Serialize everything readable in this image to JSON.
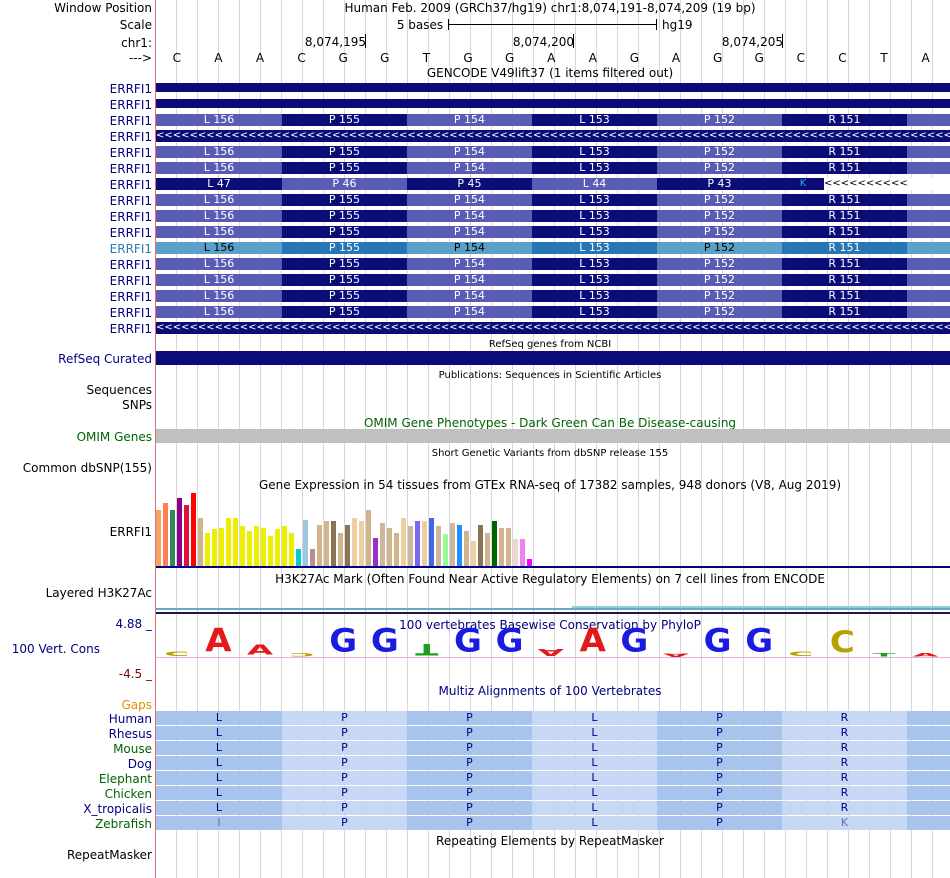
{
  "header": {
    "window_position_label": "Window Position",
    "window_position_value": "Human Feb. 2009 (GRCh37/hg19)   chr1:8,074,191-8,074,209 (19 bp)",
    "scale_label": "Scale",
    "scale_value": "5 bases",
    "scale_assembly": "hg19",
    "chrom_label": "chr1:",
    "strand_label": "--->",
    "positions": [
      "8,074,195",
      "8,074,200",
      "8,074,205"
    ],
    "bases": [
      "C",
      "A",
      "A",
      "C",
      "G",
      "G",
      "T",
      "G",
      "G",
      "A",
      "A",
      "G",
      "A",
      "G",
      "G",
      "C",
      "C",
      "T",
      "A"
    ]
  },
  "gencode": {
    "title": "GENCODE V49lift37 (1 items filtered out)",
    "track_names": [
      "ERRFI1",
      "ERRFI1",
      "ERRFI1",
      "ERRFI1",
      "ERRFI1",
      "ERRFI1",
      "ERRFI1",
      "ERRFI1",
      "ERRFI1",
      "ERRFI1",
      "ERRFI1",
      "ERRFI1",
      "ERRFI1",
      "ERRFI1",
      "ERRFI1"
    ],
    "codons": [
      "L 156",
      "P 155",
      "P 154",
      "L 153",
      "P 152",
      "R 151"
    ],
    "alt_codons": [
      "L 47",
      "P 46",
      "P 45",
      "L 44",
      "P 43",
      "K"
    ],
    "arrow_text": "<<<<<<<<<<<<<<<<<<<<<<<<<<<<<<<<<<<<<<<<<<<<<<<<<<<<<<<<<<<<<<<<<<<<<<<<<<<<<<<<<<<<<<<<<<<<<<<<<<<<<<<<<<<<<<<<<<<<<<<<<<<<<<<<<<<<<<"
  },
  "refseq": {
    "title": "RefSeq genes from NCBI",
    "label": "RefSeq Curated"
  },
  "publications": {
    "title": "Publications: Sequences in Scientific Articles",
    "label_sequences": "Sequences",
    "label_snps": "SNPs"
  },
  "omim": {
    "title": "OMIM Gene Phenotypes - Dark Green Can Be Disease-causing",
    "label": "OMIM Genes"
  },
  "dbsnp": {
    "title": "Short Genetic Variants from dbSNP release 155",
    "label": "Common dbSNP(155)"
  },
  "gtex": {
    "title": "Gene Expression in 54 tissues from GTEx RNA-seq of 17382 samples, 948 donors (V8, Aug 2019)",
    "label": "ERRFI1",
    "values": [
      34,
      38,
      34,
      41,
      37,
      44,
      29,
      20,
      22,
      23,
      29,
      29,
      24,
      21,
      24,
      23,
      18,
      22,
      24,
      20,
      10,
      28,
      10,
      25,
      27,
      27,
      20,
      25,
      29,
      27,
      34,
      17,
      26,
      23,
      20,
      29,
      24,
      27,
      27,
      29,
      24,
      19,
      26,
      25,
      21,
      15,
      25,
      20,
      27,
      23,
      23,
      16,
      16,
      4
    ],
    "colors": [
      "#f4a460",
      "#ff7f50",
      "#2e8b57",
      "#8b008b",
      "#dc143c",
      "#ff0000",
      "#d2b48c",
      "#eeee00",
      "#eeee00",
      "#eeee00",
      "#eeee00",
      "#eeee00",
      "#eeee00",
      "#eeee00",
      "#eeee00",
      "#eeee00",
      "#eeee00",
      "#eeee00",
      "#eeee00",
      "#eeee00",
      "#00ced1",
      "#a0c8dc",
      "#bc8f8f",
      "#d2b48c",
      "#d2b48c",
      "#8b7355",
      "#d2b48c",
      "#8b7355",
      "#eecfa1",
      "#eecfa1",
      "#d2b48c",
      "#9932cc",
      "#cdb79e",
      "#d2b48c",
      "#d2b48c",
      "#eecfa1",
      "#cdb79e",
      "#7b68ee",
      "#eecfa1",
      "#4169e1",
      "#cdb79e",
      "#98fb98",
      "#cdb79e",
      "#1e90ff",
      "#d2b48c",
      "#eecfa1",
      "#8b7355",
      "#d2b48c",
      "#006400",
      "#d2b48c",
      "#d2b48c",
      "#eed5d2",
      "#ee82ee",
      "#ff00ff"
    ]
  },
  "h3k27ac": {
    "title": "H3K27Ac Mark (Often Found Near Active Regulatory Elements) on 7 cell lines from ENCODE",
    "label": "Layered H3K27Ac"
  },
  "conservation": {
    "title": "100 vertebrates Basewise Conservation by PhyloP",
    "label": "100 Vert. Cons",
    "max_label": "4.88 _",
    "min_label": "-4.5 _"
  },
  "multiz": {
    "title": "Multiz Alignments of 100 Vertebrates",
    "gaps_label": "Gaps",
    "species": [
      "Human",
      "Rhesus",
      "Mouse",
      "Dog",
      "Elephant",
      "Chicken",
      "X_tropicalis",
      "Zebrafish"
    ],
    "aa": [
      "L",
      "P",
      "P",
      "L",
      "P",
      "R"
    ],
    "zebrafish_aa": [
      "I",
      "P",
      "P",
      "L",
      "P",
      "K"
    ]
  },
  "repeatmasker": {
    "title": "Repeating Elements by RepeatMasker",
    "label": "RepeatMasker"
  },
  "colors": {
    "navy": "#0c0c78",
    "medium": "#5a5cb4",
    "omim_gray": "#c0c0c0",
    "accent_red": "#e07070"
  }
}
